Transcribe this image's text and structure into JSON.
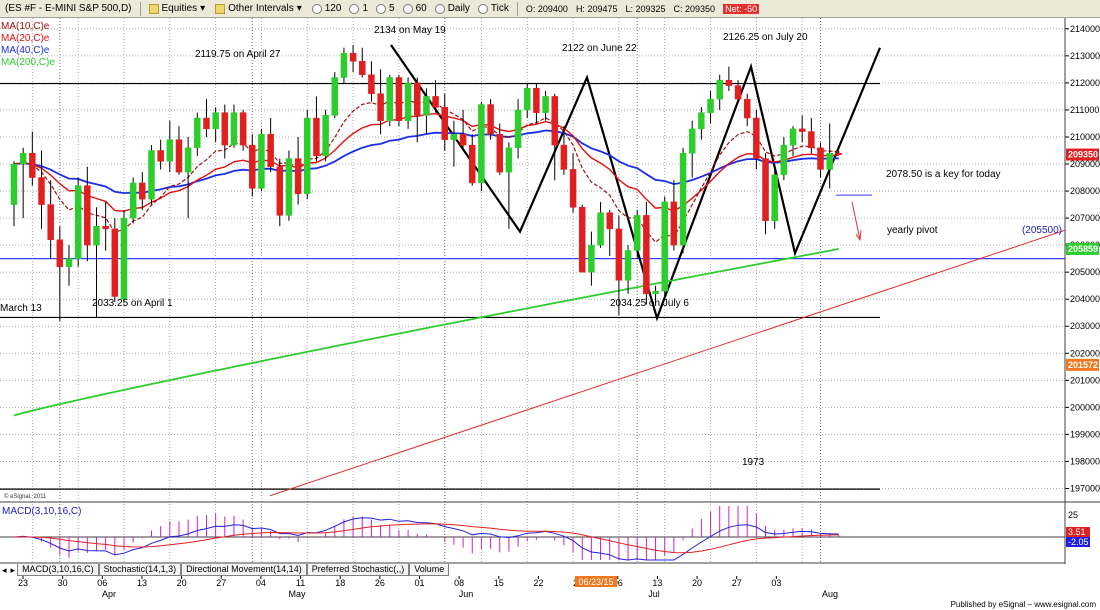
{
  "toolbar": {
    "symbol": "(ES #F - E-MINI S&P 500,D)",
    "equities_label": "Equities",
    "other_intervals_label": "Other Intervals",
    "intervals": [
      "120",
      "1",
      "5",
      "60",
      "Daily",
      "Tick"
    ]
  },
  "quote": {
    "open": "O: 209400",
    "high": "H: 209475",
    "low": "L: 209325",
    "close": "C: 209350",
    "change": "Net: -50"
  },
  "legend": [
    {
      "label": "MA(10,C)e",
      "color": "#a01010"
    },
    {
      "label": "MA(20,C)e",
      "color": "#e01010"
    },
    {
      "label": "MA(40,C)e",
      "color": "#1a2ee8"
    },
    {
      "label": "MA(200,C)e",
      "color": "#2ecc2e"
    }
  ],
  "copyright": "© eSignal, 2011",
  "macd_label": "MACD(3,10,16,C)",
  "macd_values": [
    "3.51",
    "-2.05"
  ],
  "tabs": [
    "MACD(3,10,16,C)",
    "Stochastic(14,1,3)",
    "Directional Movement(14,14)",
    "Preferred Stochastic(,,)",
    "Volume"
  ],
  "footer": "Published by eSignal – www.esignal.com",
  "chart_data": {
    "type": "candlestick",
    "title": "",
    "xlabel": "",
    "ylabel": "",
    "ylim": [
      196500,
      214400
    ],
    "y_ticks": [
      197000,
      198000,
      199000,
      200000,
      201000,
      202000,
      203000,
      204000,
      205000,
      206000,
      207000,
      208000,
      209000,
      210000,
      211000,
      212000,
      213000,
      214000
    ],
    "x_tick_labels": [
      "23",
      "30",
      "06",
      "13",
      "20",
      "27",
      "04",
      "11",
      "18",
      "26",
      "01",
      "08",
      "15",
      "22",
      "29",
      "06",
      "13",
      "20",
      "27",
      "03"
    ],
    "month_labels": [
      "Apr",
      "May",
      "Jun",
      "Jul",
      "Aug"
    ],
    "highlight_date": "06/23/15",
    "candles": [
      {
        "o": 207500,
        "h": 209100,
        "l": 206700,
        "c": 209000
      },
      {
        "o": 209000,
        "h": 209600,
        "l": 207000,
        "c": 209400
      },
      {
        "o": 209400,
        "h": 210200,
        "l": 208200,
        "c": 208500
      },
      {
        "o": 208500,
        "h": 209500,
        "l": 206600,
        "c": 207500
      },
      {
        "o": 207500,
        "h": 208400,
        "l": 205500,
        "c": 206200
      },
      {
        "o": 206200,
        "h": 206700,
        "l": 203200,
        "c": 205200
      },
      {
        "o": 205200,
        "h": 206000,
        "l": 204500,
        "c": 205500
      },
      {
        "o": 205500,
        "h": 208500,
        "l": 205200,
        "c": 208200
      },
      {
        "o": 208200,
        "h": 208900,
        "l": 205400,
        "c": 206000
      },
      {
        "o": 206000,
        "h": 207400,
        "l": 203300,
        "c": 206700
      },
      {
        "o": 206700,
        "h": 207600,
        "l": 205800,
        "c": 206600
      },
      {
        "o": 206600,
        "h": 207000,
        "l": 203900,
        "c": 204100
      },
      {
        "o": 204000,
        "h": 207300,
        "l": 203900,
        "c": 207000
      },
      {
        "o": 207000,
        "h": 208500,
        "l": 206800,
        "c": 208300
      },
      {
        "o": 208300,
        "h": 208700,
        "l": 207300,
        "c": 207700
      },
      {
        "o": 207700,
        "h": 209700,
        "l": 207500,
        "c": 209500
      },
      {
        "o": 209500,
        "h": 209900,
        "l": 208800,
        "c": 209100
      },
      {
        "o": 209100,
        "h": 210600,
        "l": 208700,
        "c": 209900
      },
      {
        "o": 209900,
        "h": 210400,
        "l": 208600,
        "c": 208700
      },
      {
        "o": 208700,
        "h": 210000,
        "l": 207000,
        "c": 209600
      },
      {
        "o": 209600,
        "h": 210900,
        "l": 209300,
        "c": 210700
      },
      {
        "o": 210700,
        "h": 211400,
        "l": 210000,
        "c": 210300
      },
      {
        "o": 210300,
        "h": 211100,
        "l": 209800,
        "c": 210900
      },
      {
        "o": 210900,
        "h": 211200,
        "l": 209200,
        "c": 209700
      },
      {
        "o": 209700,
        "h": 211200,
        "l": 209600,
        "c": 210900
      },
      {
        "o": 210900,
        "h": 211000,
        "l": 209500,
        "c": 209700
      },
      {
        "o": 209700,
        "h": 210100,
        "l": 207800,
        "c": 208100
      },
      {
        "o": 208100,
        "h": 210300,
        "l": 208000,
        "c": 210100
      },
      {
        "o": 210100,
        "h": 210700,
        "l": 208700,
        "c": 208900
      },
      {
        "o": 208900,
        "h": 209200,
        "l": 206700,
        "c": 207100
      },
      {
        "o": 207100,
        "h": 209500,
        "l": 206900,
        "c": 209200
      },
      {
        "o": 209200,
        "h": 210000,
        "l": 207500,
        "c": 207900
      },
      {
        "o": 207900,
        "h": 211000,
        "l": 207700,
        "c": 210700
      },
      {
        "o": 210700,
        "h": 211500,
        "l": 209100,
        "c": 209300
      },
      {
        "o": 209300,
        "h": 211000,
        "l": 209100,
        "c": 210800
      },
      {
        "o": 210800,
        "h": 212400,
        "l": 210700,
        "c": 212200
      },
      {
        "o": 212200,
        "h": 213300,
        "l": 212000,
        "c": 213100
      },
      {
        "o": 213100,
        "h": 213400,
        "l": 212400,
        "c": 212800
      },
      {
        "o": 212800,
        "h": 213300,
        "l": 212200,
        "c": 212300
      },
      {
        "o": 212300,
        "h": 212800,
        "l": 211300,
        "c": 211600
      },
      {
        "o": 211600,
        "h": 212500,
        "l": 210100,
        "c": 210600
      },
      {
        "o": 210600,
        "h": 212300,
        "l": 210400,
        "c": 212200
      },
      {
        "o": 212200,
        "h": 212300,
        "l": 210400,
        "c": 210600
      },
      {
        "o": 210600,
        "h": 212200,
        "l": 210300,
        "c": 212000
      },
      {
        "o": 212000,
        "h": 212200,
        "l": 209800,
        "c": 210800
      },
      {
        "o": 210800,
        "h": 211800,
        "l": 210100,
        "c": 211500
      },
      {
        "o": 211500,
        "h": 212100,
        "l": 210900,
        "c": 211100
      },
      {
        "o": 211100,
        "h": 211600,
        "l": 209500,
        "c": 209900
      },
      {
        "o": 209900,
        "h": 210600,
        "l": 208900,
        "c": 210100
      },
      {
        "o": 210100,
        "h": 211000,
        "l": 209600,
        "c": 209700
      },
      {
        "o": 209700,
        "h": 210100,
        "l": 208200,
        "c": 208300
      },
      {
        "o": 208300,
        "h": 211300,
        "l": 208000,
        "c": 211200
      },
      {
        "o": 211200,
        "h": 211400,
        "l": 209900,
        "c": 210100
      },
      {
        "o": 210100,
        "h": 210500,
        "l": 208600,
        "c": 208700
      },
      {
        "o": 208700,
        "h": 209800,
        "l": 206600,
        "c": 209600
      },
      {
        "o": 209600,
        "h": 211400,
        "l": 209200,
        "c": 211000
      },
      {
        "o": 211000,
        "h": 212000,
        "l": 210700,
        "c": 211800
      },
      {
        "o": 211800,
        "h": 212000,
        "l": 210500,
        "c": 210900
      },
      {
        "o": 210900,
        "h": 211700,
        "l": 210600,
        "c": 211500
      },
      {
        "o": 211500,
        "h": 211600,
        "l": 208400,
        "c": 209700
      },
      {
        "o": 209700,
        "h": 210400,
        "l": 208600,
        "c": 208800
      },
      {
        "o": 208800,
        "h": 209400,
        "l": 207200,
        "c": 207400
      },
      {
        "o": 207400,
        "h": 207500,
        "l": 205000,
        "c": 205000
      },
      {
        "o": 205000,
        "h": 206500,
        "l": 204500,
        "c": 206000
      },
      {
        "o": 206000,
        "h": 207600,
        "l": 205900,
        "c": 207200
      },
      {
        "o": 207200,
        "h": 207300,
        "l": 205600,
        "c": 206600
      },
      {
        "o": 206600,
        "h": 207100,
        "l": 203400,
        "c": 204700
      },
      {
        "o": 204700,
        "h": 206000,
        "l": 204200,
        "c": 205800
      },
      {
        "o": 205800,
        "h": 207300,
        "l": 205500,
        "c": 207100
      },
      {
        "o": 207100,
        "h": 207600,
        "l": 203800,
        "c": 204200
      },
      {
        "o": 204200,
        "h": 204500,
        "l": 203800,
        "c": 204300
      },
      {
        "o": 204300,
        "h": 207800,
        "l": 204000,
        "c": 207600
      },
      {
        "o": 207600,
        "h": 208400,
        "l": 205800,
        "c": 206000
      },
      {
        "o": 206000,
        "h": 209600,
        "l": 205700,
        "c": 209400
      },
      {
        "o": 209400,
        "h": 210600,
        "l": 208500,
        "c": 210300
      },
      {
        "o": 210300,
        "h": 211100,
        "l": 209900,
        "c": 210900
      },
      {
        "o": 210900,
        "h": 211700,
        "l": 210500,
        "c": 211400
      },
      {
        "o": 211400,
        "h": 212300,
        "l": 211000,
        "c": 212100
      },
      {
        "o": 212100,
        "h": 212600,
        "l": 211700,
        "c": 211900
      },
      {
        "o": 211900,
        "h": 212100,
        "l": 211300,
        "c": 211400
      },
      {
        "o": 211400,
        "h": 211600,
        "l": 210400,
        "c": 210700
      },
      {
        "o": 210700,
        "h": 211000,
        "l": 208800,
        "c": 209200
      },
      {
        "o": 209200,
        "h": 209400,
        "l": 206400,
        "c": 206900
      },
      {
        "o": 206900,
        "h": 208800,
        "l": 206600,
        "c": 208600
      },
      {
        "o": 208600,
        "h": 210000,
        "l": 208400,
        "c": 209700
      },
      {
        "o": 209700,
        "h": 210400,
        "l": 209300,
        "c": 210300
      },
      {
        "o": 210300,
        "h": 210800,
        "l": 209800,
        "c": 210200
      },
      {
        "o": 210200,
        "h": 210700,
        "l": 209400,
        "c": 209600
      },
      {
        "o": 209600,
        "h": 209800,
        "l": 208500,
        "c": 208800
      },
      {
        "o": 208800,
        "h": 210500,
        "l": 208100,
        "c": 209400
      },
      {
        "o": 209400,
        "h": 209475,
        "l": 209325,
        "c": 209350
      }
    ],
    "axis_value_labels": [
      {
        "text": "209350",
        "color": "#e02020"
      },
      {
        "text": "205859",
        "color": "#2ecc2e"
      },
      {
        "text": "201572",
        "color": "#f07820"
      }
    ],
    "annotations": [
      {
        "text": "2134 on May 19"
      },
      {
        "text": "2119.75 on April 27"
      },
      {
        "text": "2122 on June 22"
      },
      {
        "text": "2126.25 on July 20"
      },
      {
        "text": "2078.50 is a key for today"
      },
      {
        "text": "yearly pivot"
      },
      {
        "text": "(205500)"
      },
      {
        "text": "March 13"
      },
      {
        "text": "2033.25 on April 1"
      },
      {
        "text": "2034.25 on July 6"
      },
      {
        "text": "1973"
      }
    ],
    "horizontal_lines": [
      {
        "value": 211975,
        "color": "#000000"
      },
      {
        "value": 205500,
        "color": "#3a3aff"
      },
      {
        "value": 203325,
        "color": "#000000"
      },
      {
        "value": 196975,
        "color": "#000000"
      }
    ]
  }
}
